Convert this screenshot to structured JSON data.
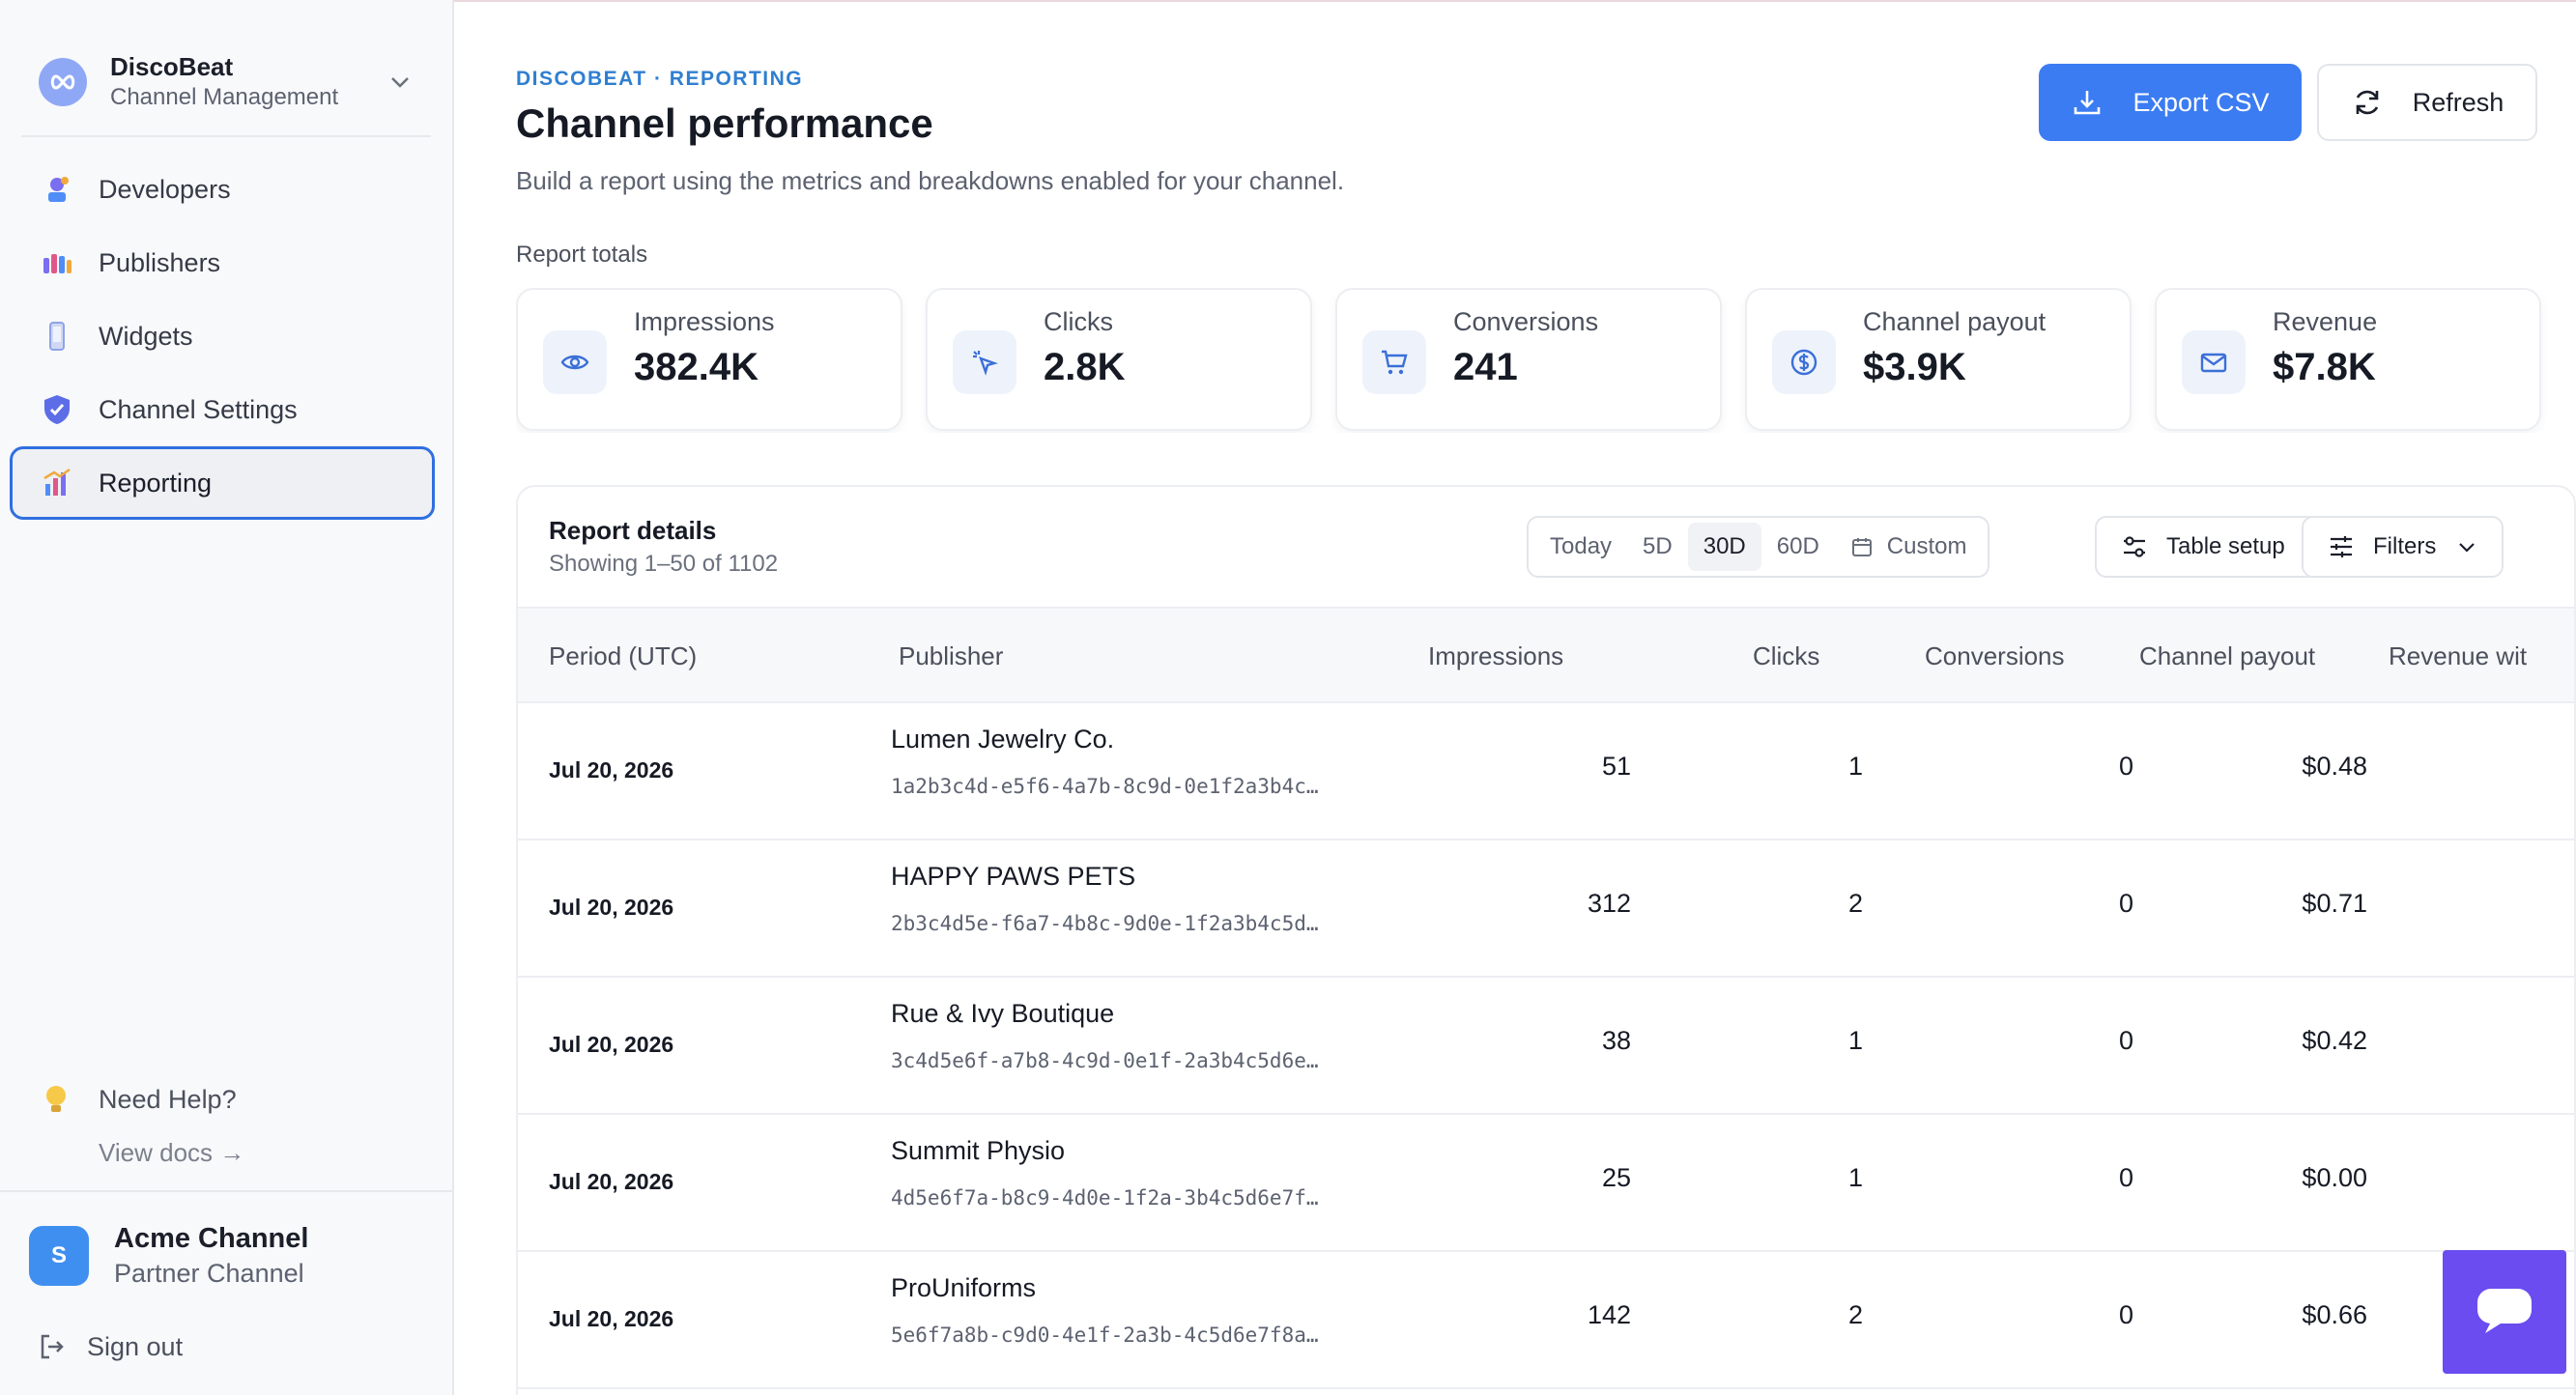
{
  "sidebar": {
    "workspace_name": "DiscoBeat",
    "workspace_sub": "Channel Management",
    "nav": [
      {
        "label": "Developers"
      },
      {
        "label": "Publishers"
      },
      {
        "label": "Widgets"
      },
      {
        "label": "Channel Settings"
      },
      {
        "label": "Reporting"
      }
    ],
    "help_label": "Need Help?",
    "docs_label": "View docs →",
    "account_initial": "S",
    "account_name": "Acme Channel",
    "account_sub": "Partner Channel",
    "signout_label": "Sign out"
  },
  "header": {
    "eyebrow": "DISCOBEAT · REPORTING",
    "title": "Channel performance",
    "subtitle": "Build a report using the metrics and breakdowns enabled for your channel.",
    "export_label": "Export CSV",
    "refresh_label": "Refresh"
  },
  "totals": {
    "label": "Report totals",
    "cards": [
      {
        "label": "Impressions",
        "value": "382.4K",
        "icon": "eye-icon"
      },
      {
        "label": "Clicks",
        "value": "2.8K",
        "icon": "cursor-click-icon"
      },
      {
        "label": "Conversions",
        "value": "241",
        "icon": "cart-icon"
      },
      {
        "label": "Channel payout",
        "value": "$3.9K",
        "icon": "dollar-circle-icon"
      },
      {
        "label": "Revenue",
        "value": "$7.8K",
        "icon": "mail-icon"
      }
    ]
  },
  "details": {
    "title": "Report details",
    "subtitle": "Showing 1–50 of 1102",
    "ranges": [
      "Today",
      "5D",
      "30D",
      "60D"
    ],
    "active_range": "30D",
    "custom_label": "Custom",
    "table_setup_label": "Table setup",
    "filters_label": "Filters"
  },
  "table": {
    "columns": [
      "Period (UTC)",
      "Publisher",
      "Impressions",
      "Clicks",
      "Conversions",
      "Channel payout",
      "Revenue wit"
    ],
    "rows": [
      {
        "period": "Jul 20, 2026",
        "publisher": "Lumen Jewelry Co.",
        "id": "1a2b3c4d-e5f6-4a7b-8c9d-0e1f2a3b4c…",
        "impressions": "51",
        "clicks": "1",
        "conversions": "0",
        "payout": "$0.48"
      },
      {
        "period": "Jul 20, 2026",
        "publisher": "HAPPY PAWS PETS",
        "id": "2b3c4d5e-f6a7-4b8c-9d0e-1f2a3b4c5d…",
        "impressions": "312",
        "clicks": "2",
        "conversions": "0",
        "payout": "$0.71"
      },
      {
        "period": "Jul 20, 2026",
        "publisher": "Rue & Ivy Boutique",
        "id": "3c4d5e6f-a7b8-4c9d-0e1f-2a3b4c5d6e…",
        "impressions": "38",
        "clicks": "1",
        "conversions": "0",
        "payout": "$0.42"
      },
      {
        "period": "Jul 20, 2026",
        "publisher": "Summit Physio",
        "id": "4d5e6f7a-b8c9-4d0e-1f2a-3b4c5d6e7f…",
        "impressions": "25",
        "clicks": "1",
        "conversions": "0",
        "payout": "$0.00"
      },
      {
        "period": "Jul 20, 2026",
        "publisher": "ProUniforms",
        "id": "5e6f7a8b-c9d0-4e1f-2a3b-4c5d6e7f8a…",
        "impressions": "142",
        "clicks": "2",
        "conversions": "0",
        "payout": "$0.66"
      }
    ]
  },
  "colors": {
    "accent": "#3b7cf2",
    "active_border": "#2f6fe0",
    "eyebrow": "#2f7fd0",
    "chat": "#6a4cf0"
  }
}
